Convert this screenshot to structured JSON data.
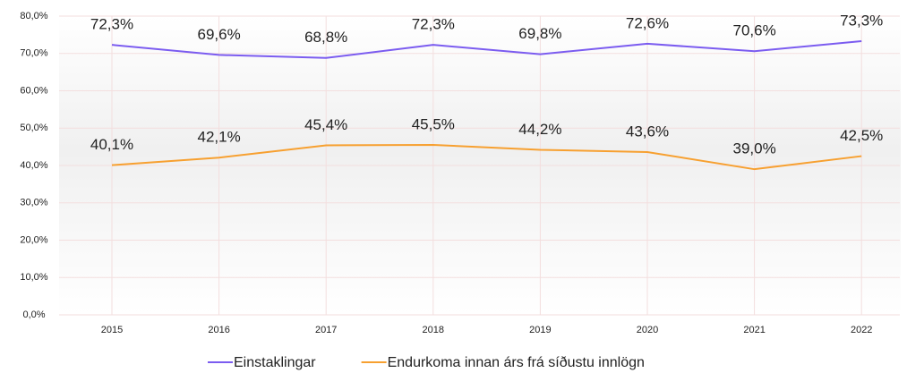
{
  "chart_data": {
    "type": "line",
    "categories": [
      "2015",
      "2016",
      "2017",
      "2018",
      "2019",
      "2020",
      "2021",
      "2022"
    ],
    "series": [
      {
        "name": "Einstaklingar",
        "color": "#7b5cf0",
        "values": [
          72.3,
          69.6,
          68.8,
          72.3,
          69.8,
          72.6,
          70.6,
          73.3
        ],
        "value_labels": [
          "72,3%",
          "69,6%",
          "68,8%",
          "72,3%",
          "69,8%",
          "72,6%",
          "70,6%",
          "73,3%"
        ]
      },
      {
        "name": "Endurkoma innan árs frá síðustu innlögn",
        "color": "#f7a030",
        "values": [
          40.1,
          42.1,
          45.4,
          45.5,
          44.2,
          43.6,
          39.0,
          42.5
        ],
        "value_labels": [
          "40,1%",
          "42,1%",
          "45,4%",
          "45,5%",
          "44,2%",
          "43,6%",
          "39,0%",
          "42,5%"
        ]
      }
    ],
    "ylim": [
      0,
      80
    ],
    "yticks": [
      {
        "value": 0,
        "label": "0,0%"
      },
      {
        "value": 10,
        "label": "10,0%"
      },
      {
        "value": 20,
        "label": "20,0%"
      },
      {
        "value": 30,
        "label": "30,0%"
      },
      {
        "value": 40,
        "label": "40,0%"
      },
      {
        "value": 50,
        "label": "50,0%"
      },
      {
        "value": 60,
        "label": "60,0%"
      },
      {
        "value": 70,
        "label": "70,0%"
      },
      {
        "value": 80,
        "label": "80,0%"
      }
    ],
    "grid": true,
    "legend": "bottom"
  }
}
